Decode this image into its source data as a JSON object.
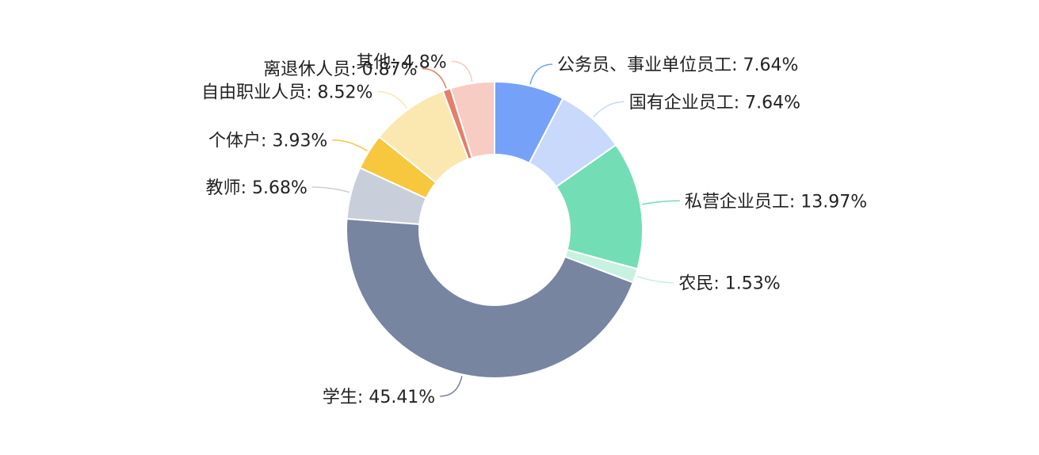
{
  "chart_data": {
    "type": "pie",
    "variant": "donut",
    "title": "",
    "legend": "none",
    "slices": [
      {
        "label": "公务员、事业单位员工",
        "value": 7.64,
        "display": "公务员、事业单位员工: 7.64%",
        "color": "#75a2f8"
      },
      {
        "label": "国有企业员工",
        "value": 7.64,
        "display": "国有企业员工: 7.64%",
        "color": "#c8d9fb"
      },
      {
        "label": "私营企业员工",
        "value": 13.97,
        "display": "私营企业员工: 13.97%",
        "color": "#73ddb6"
      },
      {
        "label": "农民",
        "value": 1.53,
        "display": "农民: 1.53%",
        "color": "#c7f1e1"
      },
      {
        "label": "学生",
        "value": 45.41,
        "display": "学生: 45.41%",
        "color": "#7885a0"
      },
      {
        "label": "教师",
        "value": 5.68,
        "display": "教师: 5.68%",
        "color": "#c9cfda"
      },
      {
        "label": "个体户",
        "value": 3.93,
        "display": "个体户: 3.93%",
        "color": "#f7c73e"
      },
      {
        "label": "自由职业人员",
        "value": 8.52,
        "display": "自由职业人员: 8.52%",
        "color": "#fbe8b1"
      },
      {
        "label": "离退休人员",
        "value": 0.87,
        "display": "离退休人员: 0.87%",
        "color": "#e37f6a"
      },
      {
        "label": "其他",
        "value": 4.8,
        "display": "其他: 4.8%",
        "color": "#f7ccc3"
      }
    ]
  }
}
